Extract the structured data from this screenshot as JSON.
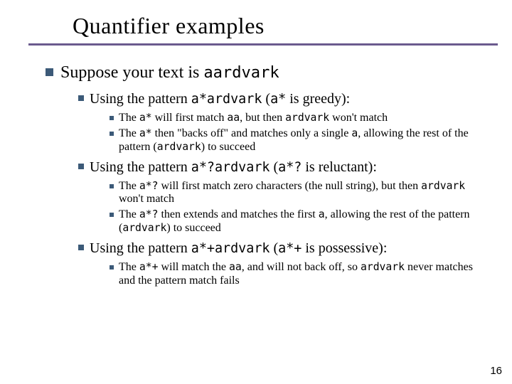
{
  "title": "Quantifier examples",
  "pagenum": "16",
  "lvl1": {
    "pre": "Suppose your text is ",
    "code": "aardvark"
  },
  "g": {
    "intro_pre": "Using the pattern ",
    "intro_code1": "a*ardvark",
    "intro_mid": " (",
    "intro_code2": "a*",
    "intro_post": " is greedy):",
    "a": {
      "t1": "The ",
      "c1": "a*",
      "t2": " will first match ",
      "c2": "aa",
      "t3": ", but then ",
      "c3": "ardvark",
      "t4": " won't match"
    },
    "b": {
      "t1": "The ",
      "c1": "a*",
      "t2": " then \"backs off\" and matches only a single ",
      "c2": "a",
      "t3": ", allowing the rest of the pattern (",
      "c3": "ardvark",
      "t4": ") to succeed"
    }
  },
  "r": {
    "intro_pre": "Using the pattern ",
    "intro_code1": "a*?ardvark",
    "intro_mid": " (",
    "intro_code2": "a*?",
    "intro_post": " is reluctant):",
    "a": {
      "t1": "The ",
      "c1": "a*?",
      "t2": " will first match zero characters (the null string), but then ",
      "c2": "ardvark",
      "t3": " won't match"
    },
    "b": {
      "t1": "The ",
      "c1": "a*?",
      "t2": " then extends and matches the first ",
      "c2": "a",
      "t3": ", allowing the rest of the pattern (",
      "c3": "ardvark",
      "t4": ") to succeed"
    }
  },
  "p": {
    "intro_pre": "Using the pattern ",
    "intro_code1": "a*+ardvark",
    "intro_mid": " (",
    "intro_code2": "a*+",
    "intro_post": " is possessive):",
    "a": {
      "t1": "The ",
      "c1": "a*+",
      "t2": " will match the ",
      "c2": "aa",
      "t3": ", and will not back off, so ",
      "c3": "ardvark",
      "t4": " never matches and the pattern match fails"
    }
  },
  "colors": {
    "bullet": "#3c5a78",
    "underline": "#6b5a8e",
    "background": "#ffffff",
    "text": "#000000"
  }
}
